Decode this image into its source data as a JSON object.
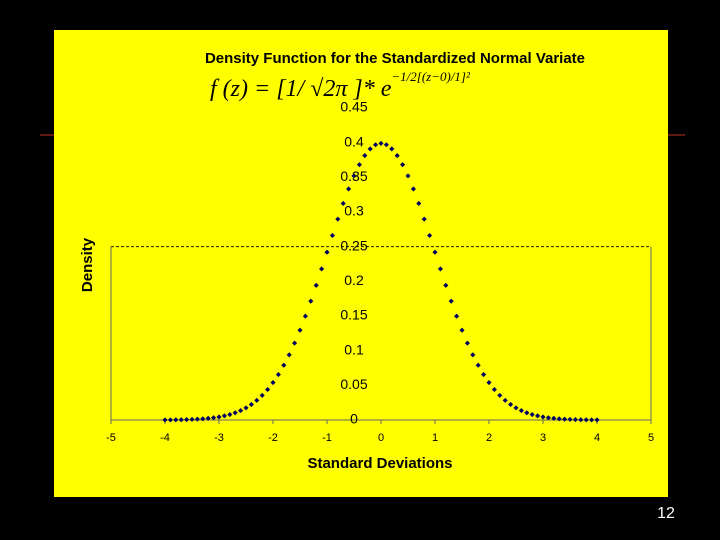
{
  "chart_data": {
    "type": "scatter",
    "title": "Density Function for the Standardized Normal Variate",
    "formula": {
      "main": "f (z) = [1/ √2π ]* e",
      "exponent": "−1/2[(z−0)/1]²"
    },
    "x_label": "Standard Deviations",
    "y_label": "Density",
    "color": "#000060",
    "x": [
      -4,
      -3.9,
      -3.8,
      -3.7,
      -3.6,
      -3.5,
      -3.4,
      -3.3,
      -3.2,
      -3.1,
      -3,
      -2.9,
      -2.8,
      -2.7,
      -2.6,
      -2.5,
      -2.4,
      -2.3,
      -2.2,
      -2.1,
      -2,
      -1.9,
      -1.8,
      -1.7,
      -1.6,
      -1.5,
      -1.4,
      -1.3,
      -1.2,
      -1.1,
      -1,
      -0.9,
      -0.8,
      -0.7,
      -0.6,
      -0.5,
      -0.4,
      -0.3,
      -0.2,
      -0.1,
      0,
      0.1,
      0.2,
      0.3,
      0.4,
      0.5,
      0.6,
      0.7,
      0.8,
      0.9,
      1,
      1.1,
      1.2,
      1.3,
      1.4,
      1.5,
      1.6,
      1.7,
      1.8,
      1.9,
      2,
      2.1,
      2.2,
      2.3,
      2.4,
      2.5,
      2.6,
      2.7,
      2.8,
      2.9,
      3,
      3.1,
      3.2,
      3.3,
      3.4,
      3.5,
      3.6,
      3.7,
      3.8,
      3.9,
      4
    ],
    "values": [
      0.0001,
      0.0002,
      0.0003,
      0.0004,
      0.0006,
      0.0009,
      0.0012,
      0.0017,
      0.0024,
      0.0033,
      0.0044,
      0.006,
      0.0079,
      0.0104,
      0.0136,
      0.0175,
      0.0224,
      0.0283,
      0.0355,
      0.044,
      0.054,
      0.0656,
      0.079,
      0.094,
      0.1109,
      0.1295,
      0.1497,
      0.1714,
      0.1942,
      0.2179,
      0.242,
      0.2661,
      0.2897,
      0.3123,
      0.3332,
      0.3521,
      0.3683,
      0.3814,
      0.391,
      0.397,
      0.3989,
      0.397,
      0.391,
      0.3814,
      0.3683,
      0.3521,
      0.3332,
      0.3123,
      0.2897,
      0.2661,
      0.242,
      0.2179,
      0.1942,
      0.1714,
      0.1497,
      0.1295,
      0.1109,
      0.094,
      0.079,
      0.0656,
      0.054,
      0.044,
      0.0355,
      0.0283,
      0.0224,
      0.0175,
      0.0136,
      0.0104,
      0.0079,
      0.006,
      0.0044,
      0.0033,
      0.0024,
      0.0017,
      0.0012,
      0.0009,
      0.0006,
      0.0004,
      0.0003,
      0.0002,
      0.0001
    ],
    "xlim": [
      -5,
      5
    ],
    "xticks": [
      -5,
      -4,
      -3,
      -2,
      -1,
      0,
      1,
      2,
      3,
      4,
      5
    ],
    "ylim": [
      0,
      0.45
    ],
    "yticks": [
      0,
      0.05,
      0.1,
      0.15,
      0.2,
      0.25,
      0.3,
      0.35,
      0.4,
      0.45
    ],
    "reference_line": 0.25
  },
  "page_number": "12"
}
